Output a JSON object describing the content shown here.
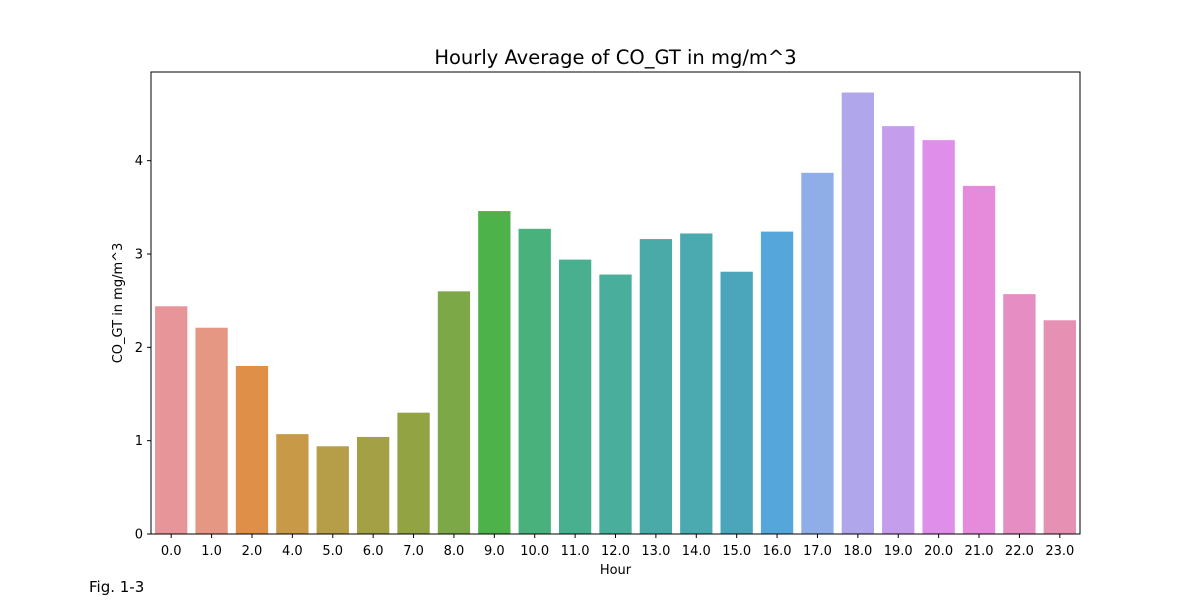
{
  "caption": "Fig. 1-3",
  "chart_data": {
    "type": "bar",
    "title": "Hourly Average of CO_GT in mg/m^3",
    "xlabel": "Hour",
    "ylabel": "CO_GT in mg/m^3",
    "categories": [
      "0.0",
      "1.0",
      "2.0",
      "4.0",
      "5.0",
      "6.0",
      "7.0",
      "8.0",
      "9.0",
      "10.0",
      "11.0",
      "12.0",
      "13.0",
      "14.0",
      "15.0",
      "16.0",
      "17.0",
      "18.0",
      "19.0",
      "20.0",
      "21.0",
      "22.0",
      "23.0"
    ],
    "values": [
      2.44,
      2.21,
      1.8,
      1.07,
      0.94,
      1.04,
      1.3,
      2.6,
      3.46,
      3.27,
      2.94,
      2.78,
      3.16,
      3.22,
      2.81,
      3.24,
      3.87,
      4.73,
      4.37,
      4.22,
      3.73,
      2.57,
      2.29
    ],
    "colors": [
      "#e8959a",
      "#e69783",
      "#df8f48",
      "#c89a48",
      "#b69e48",
      "#a4a045",
      "#92a344",
      "#7da848",
      "#4db24a",
      "#49b27c",
      "#48b08f",
      "#49ae9c",
      "#4aaaa8",
      "#4baab0",
      "#4ca6bb",
      "#55a6da",
      "#8faee7",
      "#b0a6ec",
      "#c59ded",
      "#df8ee9",
      "#e68bdb",
      "#e68ec4",
      "#e690b3"
    ],
    "ylim": [
      0,
      4.95
    ],
    "yticks": [
      0,
      1,
      2,
      3,
      4
    ],
    "grid": false
  }
}
